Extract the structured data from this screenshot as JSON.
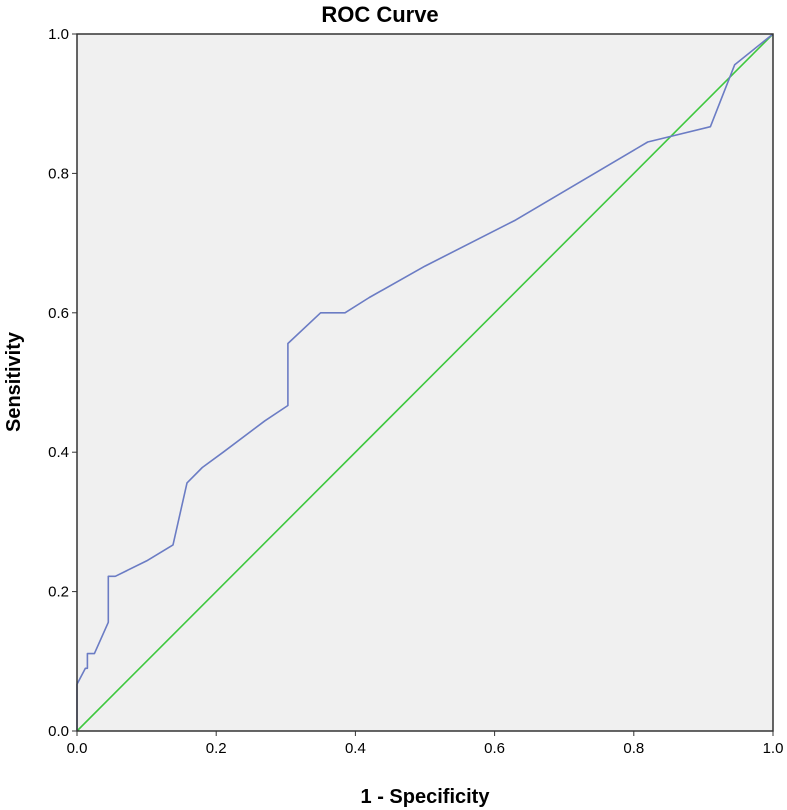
{
  "chart_data": {
    "type": "line",
    "title": "ROC Curve",
    "xlabel": "1 - Specificity",
    "ylabel": "Sensitivity",
    "xlim": [
      0,
      1
    ],
    "ylim": [
      0,
      1
    ],
    "x_ticks": [
      "0.0",
      "0.2",
      "0.4",
      "0.6",
      "0.8",
      "1.0"
    ],
    "y_ticks": [
      "0.0",
      "0.2",
      "0.4",
      "0.6",
      "0.8",
      "1.0"
    ],
    "grid": false,
    "legend": "none",
    "background_color": "#f0f0f0",
    "series": [
      {
        "color": "#6b7cc4",
        "x": [
          0.0,
          0.0,
          0.012,
          0.015,
          0.015,
          0.025,
          0.045,
          0.045,
          0.055,
          0.1,
          0.138,
          0.158,
          0.18,
          0.21,
          0.27,
          0.303,
          0.303,
          0.35,
          0.385,
          0.42,
          0.5,
          0.63,
          0.82,
          0.91,
          0.945,
          1.0
        ],
        "y": [
          0.0,
          0.067,
          0.09,
          0.09,
          0.111,
          0.111,
          0.156,
          0.222,
          0.222,
          0.244,
          0.267,
          0.356,
          0.378,
          0.4,
          0.445,
          0.467,
          0.556,
          0.6,
          0.6,
          0.622,
          0.667,
          0.733,
          0.845,
          0.867,
          0.956,
          1.0
        ]
      },
      {
        "color": "#3ec83e",
        "x": [
          0,
          1
        ],
        "y": [
          0,
          1
        ]
      }
    ]
  }
}
